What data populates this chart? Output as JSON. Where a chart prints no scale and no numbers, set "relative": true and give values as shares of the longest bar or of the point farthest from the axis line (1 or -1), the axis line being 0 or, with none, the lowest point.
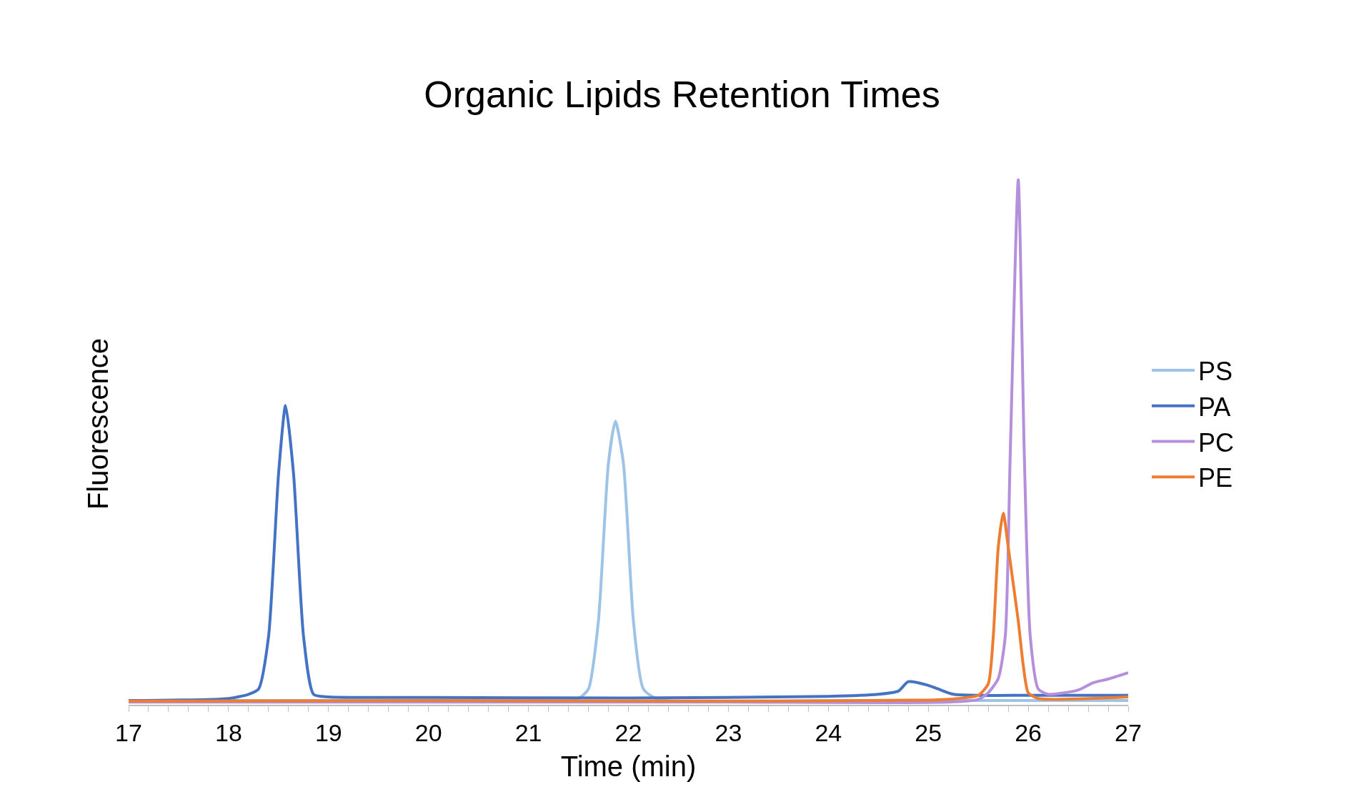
{
  "chart_data": {
    "type": "line",
    "title": "Organic Lipids Retention Times",
    "xlabel": "Time (min)",
    "ylabel": "Fluorescence",
    "relative": true,
    "xlim": [
      17,
      27
    ],
    "xticks": [
      17,
      18,
      19,
      20,
      21,
      22,
      23,
      24,
      25,
      26,
      27
    ],
    "legend": "right",
    "marker": "none",
    "line_style": "solid",
    "series": [
      {
        "name": "PS",
        "color": "#9dc3e6",
        "x": [
          17,
          19,
          21,
          21.5,
          21.6,
          21.7,
          21.8,
          21.87,
          21.95,
          22.05,
          22.15,
          22.3,
          24,
          25,
          26,
          27
        ],
        "values": [
          0.008,
          0.008,
          0.008,
          0.012,
          0.03,
          0.16,
          0.46,
          0.54,
          0.46,
          0.16,
          0.03,
          0.01,
          0.008,
          0.008,
          0.008,
          0.008
        ]
      },
      {
        "name": "PA",
        "color": "#4472c4",
        "x": [
          17,
          18,
          18.2,
          18.3,
          18.4,
          18.5,
          18.57,
          18.65,
          18.75,
          18.85,
          19,
          20,
          22,
          24,
          24.5,
          24.7,
          24.8,
          25.0,
          25.1,
          25.25,
          25.5,
          26,
          27
        ],
        "values": [
          0.008,
          0.012,
          0.02,
          0.03,
          0.13,
          0.44,
          0.57,
          0.44,
          0.13,
          0.02,
          0.015,
          0.014,
          0.013,
          0.016,
          0.02,
          0.026,
          0.044,
          0.037,
          0.03,
          0.02,
          0.018,
          0.018,
          0.018
        ]
      },
      {
        "name": "PC",
        "color": "#b48fdb",
        "x": [
          17,
          20,
          23,
          25.2,
          25.5,
          25.6,
          25.7,
          25.77,
          25.82,
          25.9,
          25.96,
          26.02,
          26.1,
          26.2,
          26.5,
          26.65,
          26.8,
          27
        ],
        "values": [
          0.005,
          0.005,
          0.005,
          0.005,
          0.01,
          0.023,
          0.05,
          0.13,
          0.48,
          1.0,
          0.48,
          0.13,
          0.03,
          0.02,
          0.028,
          0.042,
          0.049,
          0.061
        ]
      },
      {
        "name": "PE",
        "color": "#ed7d31",
        "x": [
          17,
          20,
          23,
          25,
          25.3,
          25.5,
          25.6,
          25.65,
          25.7,
          25.75,
          25.8,
          25.85,
          25.9,
          25.95,
          26.0,
          26.1,
          27
        ],
        "values": [
          0.007,
          0.008,
          0.007,
          0.009,
          0.012,
          0.018,
          0.04,
          0.13,
          0.3,
          0.365,
          0.3,
          0.23,
          0.16,
          0.075,
          0.023,
          0.012,
          0.015
        ]
      }
    ]
  }
}
